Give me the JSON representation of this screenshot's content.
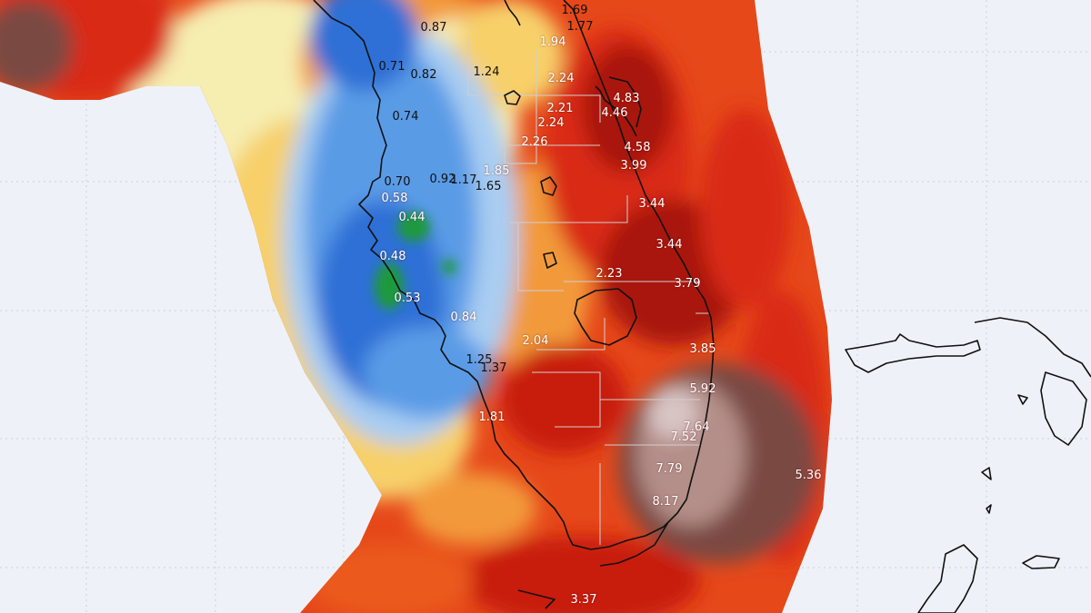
{
  "map": {
    "type": "precipitation-total-map",
    "region": "South Florida",
    "grid_lines": true,
    "colors": {
      "background": "#eef2f8",
      "green": "#1f9a3a",
      "blue_dark": "#2f6fd6",
      "blue": "#5a9be6",
      "blue_light": "#a9cdf2",
      "pale_yellow": "#f6edb0",
      "yellow": "#f7d06a",
      "orange": "#f29a3a",
      "orange_red": "#eb5a1e",
      "red": "#d92a12",
      "dark_red": "#a81208",
      "brown": "#7a4a42",
      "light_brown": "#b48e88",
      "pink": "#d9c4c4",
      "coastline": "#111111",
      "county_lines": "#cfcfcf"
    },
    "rainfall_labels": [
      {
        "text": "1.69",
        "tone": "dark"
      },
      {
        "text": "1.77",
        "tone": "dark"
      },
      {
        "text": "0.87",
        "tone": "dark"
      },
      {
        "text": "1.94",
        "tone": "light"
      },
      {
        "text": "0.71",
        "tone": "dark"
      },
      {
        "text": "0.82",
        "tone": "dark"
      },
      {
        "text": "1.24",
        "tone": "dark"
      },
      {
        "text": "2.24",
        "tone": "light"
      },
      {
        "text": "4.83",
        "tone": "light"
      },
      {
        "text": "4.46",
        "tone": "light"
      },
      {
        "text": "0.74",
        "tone": "dark"
      },
      {
        "text": "2.21",
        "tone": "light"
      },
      {
        "text": "2.24",
        "tone": "light"
      },
      {
        "text": "2.26",
        "tone": "light"
      },
      {
        "text": "4.58",
        "tone": "light"
      },
      {
        "text": "3.99",
        "tone": "light"
      },
      {
        "text": "0.70",
        "tone": "dark"
      },
      {
        "text": "0.92",
        "tone": "dark"
      },
      {
        "text": "1.17",
        "tone": "dark"
      },
      {
        "text": "1.85",
        "tone": "light"
      },
      {
        "text": "1.65",
        "tone": "dark"
      },
      {
        "text": "0.58",
        "tone": "light"
      },
      {
        "text": "3.44",
        "tone": "light"
      },
      {
        "text": "0.44",
        "tone": "light"
      },
      {
        "text": "3.44",
        "tone": "light"
      },
      {
        "text": "0.48",
        "tone": "light"
      },
      {
        "text": "2.23",
        "tone": "light"
      },
      {
        "text": "3.79",
        "tone": "light"
      },
      {
        "text": "0.53",
        "tone": "light"
      },
      {
        "text": "0.84",
        "tone": "light"
      },
      {
        "text": "2.04",
        "tone": "light"
      },
      {
        "text": "3.85",
        "tone": "light"
      },
      {
        "text": "1.25",
        "tone": "dark"
      },
      {
        "text": "1.37",
        "tone": "dark"
      },
      {
        "text": "5.92",
        "tone": "light"
      },
      {
        "text": "1.81",
        "tone": "light"
      },
      {
        "text": "7.64",
        "tone": "light"
      },
      {
        "text": "7.52",
        "tone": "light"
      },
      {
        "text": "7.79",
        "tone": "light"
      },
      {
        "text": "5.36",
        "tone": "light"
      },
      {
        "text": "8.17",
        "tone": "light"
      },
      {
        "text": "3.37",
        "tone": "light"
      }
    ]
  }
}
